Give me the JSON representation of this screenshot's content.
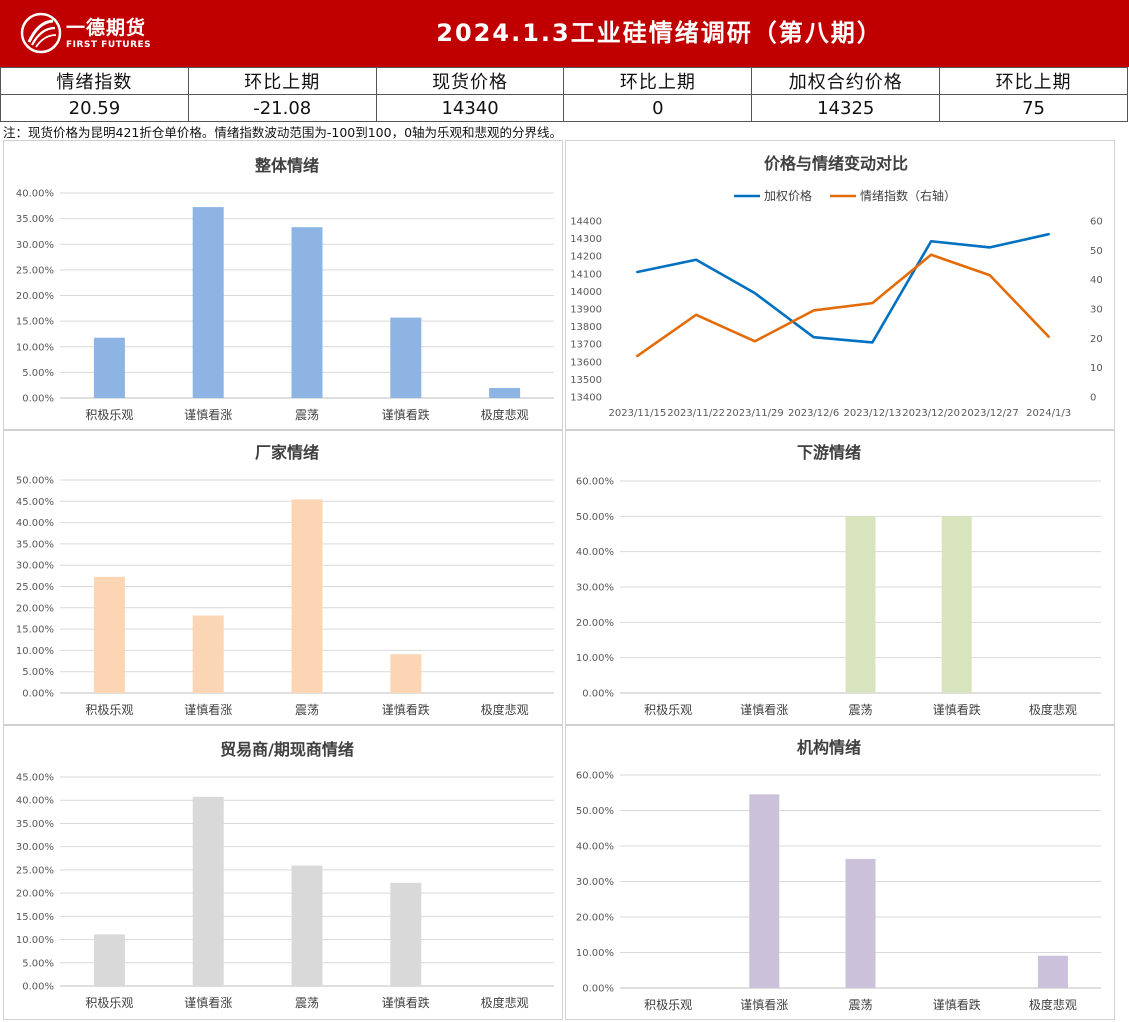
{
  "header": {
    "logo_cn": "一德期货",
    "logo_en": "FIRST FUTURES",
    "title": "2024.1.3工业硅情绪调研（第八期）",
    "bg_color": "#c00000"
  },
  "summary": {
    "headers": [
      "情绪指数",
      "环比上期",
      "现货价格",
      "环比上期",
      "加权合约价格",
      "环比上期"
    ],
    "values": [
      "20.59",
      "-21.08",
      "14340",
      "0",
      "14325",
      "75"
    ]
  },
  "note": "注：现货价格为昆明421折仓单价格。情绪指数波动范围为-100到100，0轴为乐观和悲观的分界线。",
  "chart_data": [
    {
      "type": "bar",
      "title": "整体情绪",
      "categories": [
        "积极乐观",
        "谨慎看涨",
        "震荡",
        "谨慎看跌",
        "极度悲观"
      ],
      "values": [
        11.76,
        37.25,
        33.33,
        15.69,
        1.96
      ],
      "ylim": [
        0,
        40
      ],
      "yticks": [
        "0.00%",
        "5.00%",
        "10.00%",
        "15.00%",
        "20.00%",
        "25.00%",
        "30.00%",
        "35.00%",
        "40.00%"
      ],
      "color": "#8eb4e3",
      "grid": true
    },
    {
      "type": "line",
      "title": "价格与情绪变动对比",
      "x": [
        "2023/11/15",
        "2023/11/22",
        "2023/11/29",
        "2023/12/6",
        "2023/12/13",
        "2023/12/20",
        "2023/12/27",
        "2024/1/3"
      ],
      "series": [
        {
          "name": "加权价格",
          "values": [
            14110,
            14180,
            13990,
            13740,
            13710,
            14285,
            14250,
            14325
          ],
          "color": "#0070c0",
          "axis": "left"
        },
        {
          "name": "情绪指数（右轴）",
          "values": [
            14,
            28,
            19,
            29.5,
            32,
            48.5,
            41.5,
            20.59
          ],
          "color": "#e36c09",
          "axis": "right"
        }
      ],
      "ylim_left": [
        13400,
        14400
      ],
      "yticks_left": [
        "13400",
        "13500",
        "13600",
        "13700",
        "13800",
        "13900",
        "14000",
        "14100",
        "14200",
        "14300",
        "14400"
      ],
      "ylim_right": [
        0,
        60
      ],
      "yticks_right": [
        "0",
        "10",
        "20",
        "30",
        "40",
        "50",
        "60"
      ],
      "legend": "top",
      "grid": false
    },
    {
      "type": "bar",
      "title": "厂家情绪",
      "categories": [
        "积极乐观",
        "谨慎看涨",
        "震荡",
        "谨慎看跌",
        "极度悲观"
      ],
      "values": [
        27.27,
        18.18,
        45.45,
        9.09,
        0
      ],
      "ylim": [
        0,
        50
      ],
      "yticks": [
        "0.00%",
        "5.00%",
        "10.00%",
        "15.00%",
        "20.00%",
        "25.00%",
        "30.00%",
        "35.00%",
        "40.00%",
        "45.00%",
        "50.00%"
      ],
      "color": "#fcd5b5",
      "grid": true
    },
    {
      "type": "bar",
      "title": "下游情绪",
      "categories": [
        "积极乐观",
        "谨慎看涨",
        "震荡",
        "谨慎看跌",
        "极度悲观"
      ],
      "values": [
        0,
        0,
        50,
        50,
        0
      ],
      "ylim": [
        0,
        60
      ],
      "yticks": [
        "0.00%",
        "10.00%",
        "20.00%",
        "30.00%",
        "40.00%",
        "50.00%",
        "60.00%"
      ],
      "color": "#d7e4bd",
      "grid": true
    },
    {
      "type": "bar",
      "title": "贸易商/期现商情绪",
      "categories": [
        "积极乐观",
        "谨慎看涨",
        "震荡",
        "谨慎看跌",
        "极度悲观"
      ],
      "values": [
        11.11,
        40.74,
        25.93,
        22.22,
        0
      ],
      "ylim": [
        0,
        45
      ],
      "yticks": [
        "0.00%",
        "5.00%",
        "10.00%",
        "15.00%",
        "20.00%",
        "25.00%",
        "30.00%",
        "35.00%",
        "40.00%",
        "45.00%"
      ],
      "color": "#d9d9d9",
      "grid": true
    },
    {
      "type": "bar",
      "title": "机构情绪",
      "categories": [
        "积极乐观",
        "谨慎看涨",
        "震荡",
        "谨慎看跌",
        "极度悲观"
      ],
      "values": [
        0,
        54.55,
        36.36,
        0,
        9.09
      ],
      "ylim": [
        0,
        60
      ],
      "yticks": [
        "0.00%",
        "10.00%",
        "20.00%",
        "30.00%",
        "40.00%",
        "50.00%",
        "60.00%"
      ],
      "color": "#ccc1da",
      "grid": true
    }
  ]
}
